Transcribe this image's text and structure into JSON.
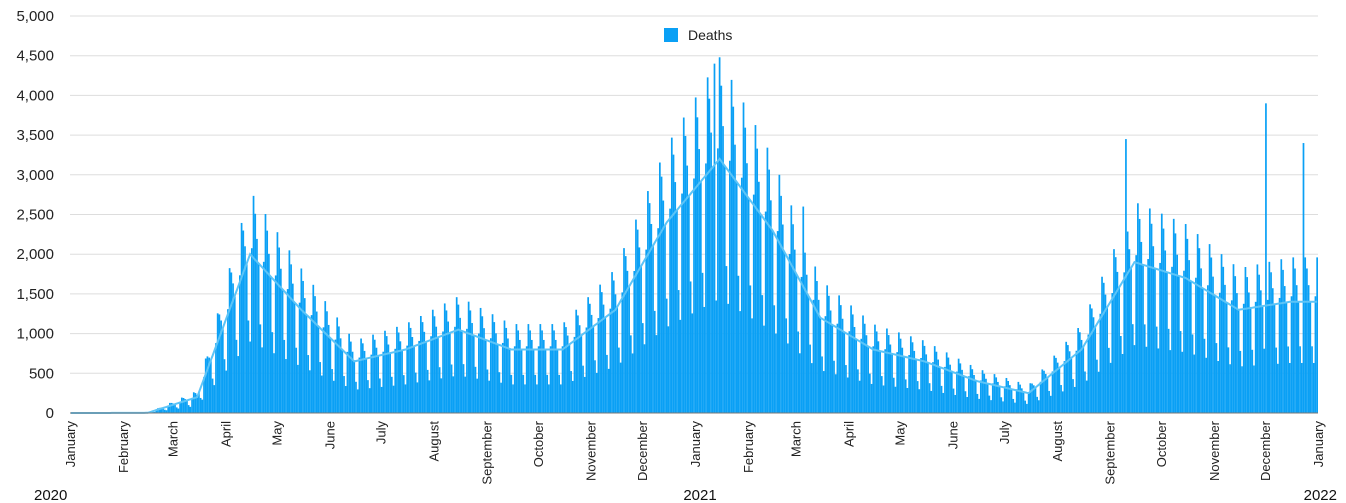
{
  "chart_data": {
    "type": "bar",
    "legend": {
      "label": "Deaths",
      "position": "top-center",
      "color": "#0aa0f5"
    },
    "colors": {
      "bars": "#0aa0f5",
      "average_line": "#5cc4f7",
      "grid": "#dddddd"
    },
    "grid": true,
    "ylim": [
      0,
      5000
    ],
    "y_ticks": [
      "0",
      "500",
      "1,000",
      "1,500",
      "2,000",
      "2,500",
      "3,000",
      "3,500",
      "4,000",
      "4,500",
      "5,000"
    ],
    "x_range": [
      "2020-01-01",
      "2022-01-01"
    ],
    "month_labels": [
      "January",
      "February",
      "March",
      "April",
      "May",
      "June",
      "July",
      "August",
      "September",
      "October",
      "November",
      "December",
      "January",
      "February",
      "March",
      "April",
      "May",
      "June",
      "July",
      "August",
      "September",
      "October",
      "November",
      "December",
      "January"
    ],
    "year_labels": [
      "2020",
      "2021",
      "2022"
    ],
    "monthly_avg_daily_deaths": {
      "x": [
        "2020-01-15",
        "2020-02-15",
        "2020-03-15",
        "2020-04-15",
        "2020-05-15",
        "2020-06-15",
        "2020-07-15",
        "2020-08-15",
        "2020-09-15",
        "2020-10-15",
        "2020-11-15",
        "2020-12-15",
        "2021-01-15",
        "2021-02-15",
        "2021-03-15",
        "2021-04-15",
        "2021-05-15",
        "2021-06-15",
        "2021-07-15",
        "2021-08-15",
        "2021-09-15",
        "2021-10-15",
        "2021-11-15",
        "2021-12-15"
      ],
      "values": [
        0,
        2,
        200,
        2000,
        1300,
        650,
        800,
        1050,
        800,
        800,
        1300,
        2400,
        3200,
        2300,
        1200,
        800,
        650,
        400,
        250,
        800,
        1900,
        1700,
        1300,
        1400
      ]
    },
    "peak_annotated_values": [
      {
        "x": "2021-01-12",
        "value": 4400
      },
      {
        "x": "2021-12-01",
        "value": 3900
      },
      {
        "x": "2021-12-23",
        "value": 3400
      },
      {
        "x": "2021-09-10",
        "value": 3450
      },
      {
        "x": "2021-03-05",
        "value": 2600
      }
    ]
  }
}
